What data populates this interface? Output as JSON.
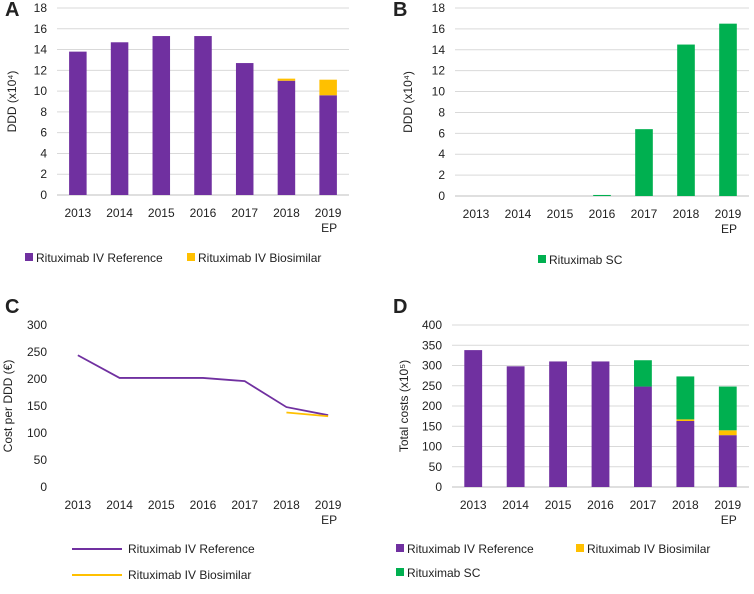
{
  "colors": {
    "reference": "#7030a0",
    "biosimilar": "#ffc000",
    "sc": "#00b050",
    "grid": "#d9d9d9",
    "axis": "#bfbfbf"
  },
  "legend_labels": {
    "reference": "Rituximab IV Reference",
    "biosimilar": "Rituximab IV Biosimilar",
    "sc": "Rituximab SC"
  },
  "chart_data": [
    {
      "panel": "A",
      "type": "bar",
      "stacked": true,
      "ylabel": "DDD (x10⁴)",
      "ylim": [
        0,
        18
      ],
      "yticks": [
        0,
        2,
        4,
        6,
        8,
        10,
        12,
        14,
        16,
        18
      ],
      "categories": [
        "2013",
        "2014",
        "2015",
        "2016",
        "2017",
        "2018",
        "2019"
      ],
      "category_sublabels": [
        "",
        "",
        "",
        "",
        "",
        "",
        "EP"
      ],
      "series": [
        {
          "name": "Rituximab IV Reference",
          "key": "reference",
          "values": [
            13.8,
            14.7,
            15.3,
            15.3,
            12.7,
            11.0,
            9.6
          ]
        },
        {
          "name": "Rituximab IV Biosimilar",
          "key": "biosimilar",
          "values": [
            0,
            0,
            0,
            0,
            0,
            0.2,
            1.5
          ]
        }
      ]
    },
    {
      "panel": "B",
      "type": "bar",
      "stacked": true,
      "ylabel": "DDD (x10⁴)",
      "ylim": [
        0,
        18
      ],
      "yticks": [
        0,
        2,
        4,
        6,
        8,
        10,
        12,
        14,
        16,
        18
      ],
      "categories": [
        "2013",
        "2014",
        "2015",
        "2016",
        "2017",
        "2018",
        "2019"
      ],
      "category_sublabels": [
        "",
        "",
        "",
        "",
        "",
        "",
        "EP"
      ],
      "series": [
        {
          "name": "Rituximab SC",
          "key": "sc",
          "values": [
            0,
            0,
            0,
            0.1,
            6.4,
            14.5,
            16.5
          ]
        }
      ]
    },
    {
      "panel": "C",
      "type": "line",
      "ylabel": "Cost per DDD (€)",
      "ylim": [
        0,
        300
      ],
      "yticks": [
        0,
        50,
        100,
        150,
        200,
        250,
        300
      ],
      "categories": [
        "2013",
        "2014",
        "2015",
        "2016",
        "2017",
        "2018",
        "2019"
      ],
      "category_sublabels": [
        "",
        "",
        "",
        "",
        "",
        "",
        "EP"
      ],
      "series": [
        {
          "name": "Rituximab IV Reference",
          "key": "reference",
          "values": [
            244,
            202,
            202,
            202,
            196,
            148,
            133
          ]
        },
        {
          "name": "Rituximab IV Biosimilar",
          "key": "biosimilar",
          "values": [
            null,
            null,
            null,
            null,
            null,
            138,
            131
          ]
        }
      ]
    },
    {
      "panel": "D",
      "type": "bar",
      "stacked": true,
      "ylabel": "Total costs (x10⁵)",
      "ylim": [
        0,
        400
      ],
      "yticks": [
        0,
        50,
        100,
        150,
        200,
        250,
        300,
        350,
        400
      ],
      "categories": [
        "2013",
        "2014",
        "2015",
        "2016",
        "2017",
        "2018",
        "2019"
      ],
      "category_sublabels": [
        "",
        "",
        "",
        "",
        "",
        "",
        "EP"
      ],
      "series": [
        {
          "name": "Rituximab IV Reference",
          "key": "reference",
          "values": [
            338,
            298,
            310,
            310,
            248,
            163,
            128
          ]
        },
        {
          "name": "Rituximab IV Biosimilar",
          "key": "biosimilar",
          "values": [
            0,
            0,
            0,
            0,
            0,
            4,
            12
          ]
        },
        {
          "name": "Rituximab SC",
          "key": "sc",
          "values": [
            0,
            0,
            0,
            0,
            65,
            106,
            108
          ]
        }
      ]
    }
  ]
}
